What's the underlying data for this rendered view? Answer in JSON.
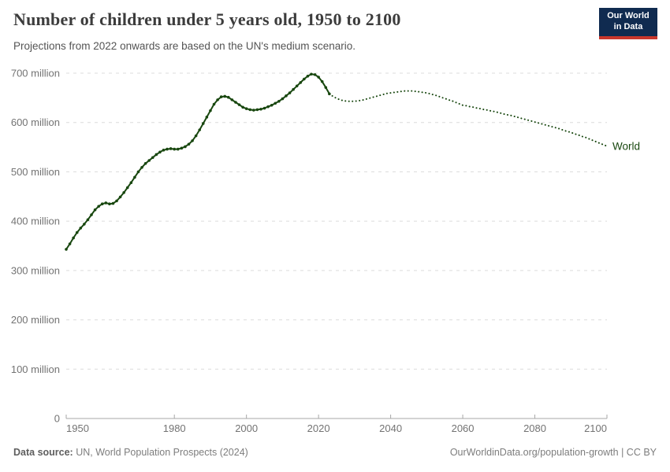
{
  "header": {
    "title": "Number of children under 5 years old, 1950 to 2100",
    "subtitle": "Projections from 2022 onwards are based on the UN's medium scenario.",
    "logo": {
      "line1": "Our World",
      "line2": "in Data",
      "bg_color": "#102b50",
      "bar_color": "#c9372c"
    }
  },
  "chart_data": {
    "type": "line",
    "title": "Number of children under 5 years old, 1950 to 2100",
    "subtitle": "Projections from 2022 onwards are based on the UN's medium scenario.",
    "unit": "million",
    "xlim": [
      1950,
      2100
    ],
    "ylim": [
      0,
      700
    ],
    "grid": true,
    "legend_position": "end-of-line-label",
    "end_label": "World",
    "line_color": "#18470f",
    "grid_color": "#dcdcdc",
    "axis_color": "#a7a7a7",
    "tick_label_color": "#737373",
    "yticks": [
      {
        "value": 0,
        "label": "0"
      },
      {
        "value": 100,
        "label": "100 million"
      },
      {
        "value": 200,
        "label": "200 million"
      },
      {
        "value": 300,
        "label": "300 million"
      },
      {
        "value": 400,
        "label": "400 million"
      },
      {
        "value": 500,
        "label": "500 million"
      },
      {
        "value": 600,
        "label": "600 million"
      },
      {
        "value": 700,
        "label": "700 million"
      }
    ],
    "xticks": [
      1950,
      1980,
      2000,
      2020,
      2040,
      2060,
      2080,
      2100
    ],
    "series": [
      {
        "name": "World — estimates",
        "style": "solid",
        "markers": true,
        "start_year": 1950,
        "values": [
          343,
          354,
          366,
          377,
          386,
          394,
          403,
          413,
          423,
          430,
          435,
          437,
          435,
          436,
          441,
          449,
          458,
          468,
          478,
          489,
          500,
          509,
          517,
          523,
          529,
          535,
          540,
          544,
          546,
          547,
          546,
          546,
          548,
          551,
          556,
          563,
          573,
          585,
          598,
          611,
          624,
          637,
          646,
          652,
          653,
          651,
          646,
          641,
          636,
          631,
          628,
          626,
          625,
          626,
          627,
          629,
          632,
          635,
          639,
          643,
          648,
          654,
          660,
          667,
          674,
          681,
          688,
          694,
          698,
          697,
          692,
          683,
          671,
          658
        ]
      },
      {
        "name": "World — UN medium-scenario projection",
        "style": "dotted",
        "markers": false,
        "start_year": 2023,
        "values": [
          658,
          653,
          649,
          646,
          644,
          643,
          643,
          643,
          644,
          645,
          647,
          649,
          651,
          653,
          655,
          657,
          659,
          660,
          661,
          662,
          663,
          664,
          664,
          664,
          663,
          662,
          661,
          660,
          658,
          656,
          654,
          651,
          649,
          646,
          644,
          641,
          638,
          635,
          634,
          632,
          631,
          629,
          628,
          626,
          625,
          623,
          622,
          620,
          618,
          616,
          615,
          613,
          611,
          609,
          607,
          605,
          603,
          601,
          599,
          597,
          595,
          593,
          591,
          589,
          587,
          584,
          582,
          580,
          577,
          575,
          572,
          570,
          567,
          564,
          561,
          558,
          555,
          552
        ]
      }
    ]
  },
  "footer": {
    "source_prefix": "Data source:",
    "source_rest": " UN, World Population Prospects (2024)",
    "right": "OurWorldinData.org/population-growth | CC BY"
  }
}
